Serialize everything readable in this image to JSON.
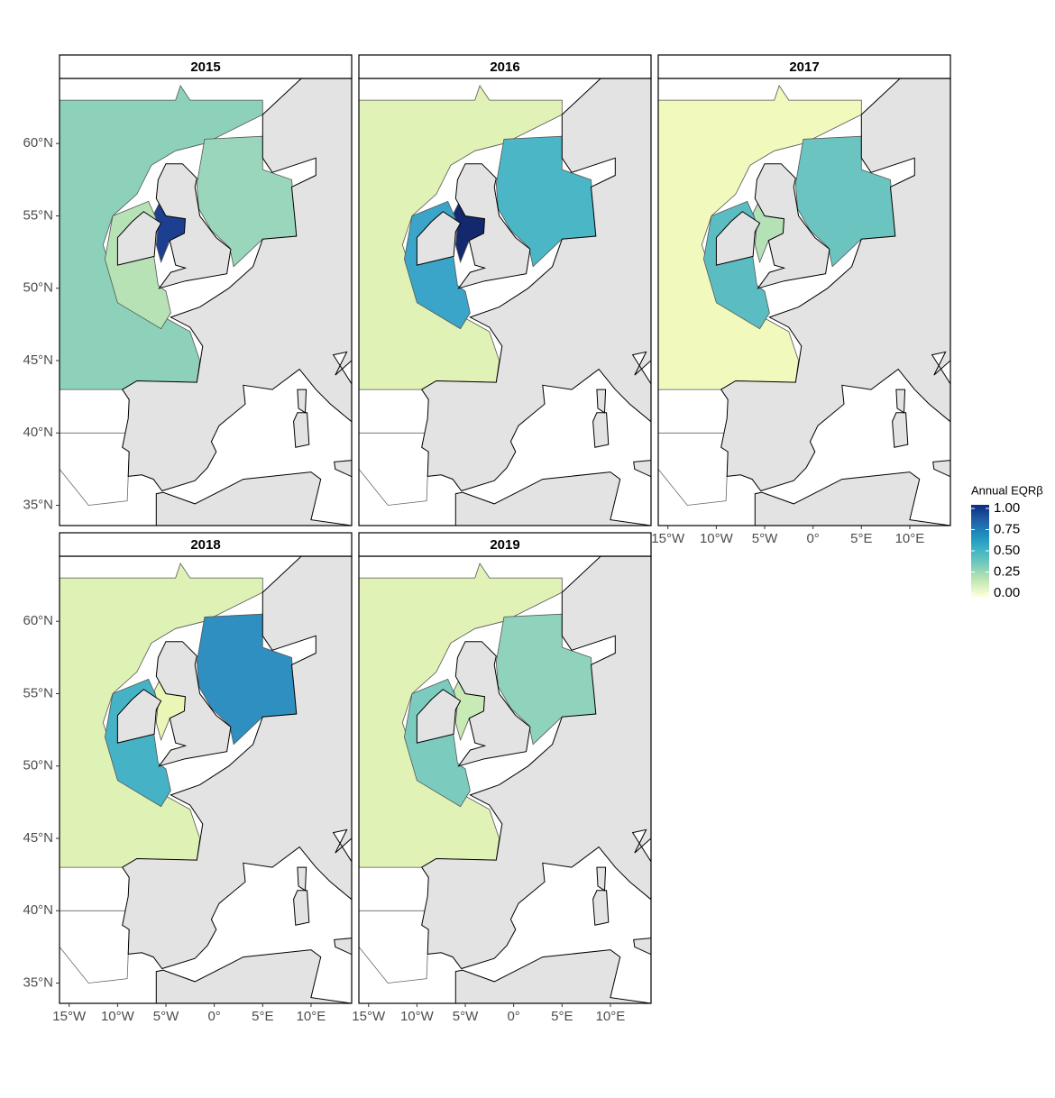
{
  "map": {
    "xlim": [
      -16,
      14.2
    ],
    "ylim": [
      33.6,
      64.5
    ],
    "xticks": [
      {
        "value": -15,
        "label": "15°W"
      },
      {
        "value": -10,
        "label": "10°W"
      },
      {
        "value": -5,
        "label": "5°W"
      },
      {
        "value": 0,
        "label": "0°"
      },
      {
        "value": 5,
        "label": "5°E"
      },
      {
        "value": 10,
        "label": "10°E"
      }
    ],
    "yticks": [
      {
        "value": 35,
        "label": "35°N"
      },
      {
        "value": 40,
        "label": "40°N"
      },
      {
        "value": 45,
        "label": "45°N"
      },
      {
        "value": 50,
        "label": "50°N"
      },
      {
        "value": 55,
        "label": "55°N"
      },
      {
        "value": 60,
        "label": "60°N"
      }
    ],
    "land_color": "#e3e3e3",
    "panels": [
      {
        "title": "2015",
        "colors": {
          "atlantic": "#8dd1bb",
          "north_sea": "#9ad6bc",
          "celtic": "#b6e2b6",
          "irish_sea": "#1d3f8f"
        }
      },
      {
        "title": "2016",
        "colors": {
          "atlantic": "#e1f2b6",
          "north_sea": "#4bb6c5",
          "celtic": "#3aa5c8",
          "irish_sea": "#14286e"
        }
      },
      {
        "title": "2017",
        "colors": {
          "atlantic": "#f1f9bd",
          "north_sea": "#6cc4c0",
          "celtic": "#5bbdc1",
          "irish_sea": "#b5e1b7"
        }
      },
      {
        "title": "2018",
        "colors": {
          "atlantic": "#dff2b5",
          "north_sea": "#2f8fc0",
          "celtic": "#46b2c6",
          "irish_sea": "#e9f6b5"
        }
      },
      {
        "title": "2019",
        "colors": {
          "atlantic": "#e1f2b6",
          "north_sea": "#90d3bc",
          "celtic": "#7bcbbf",
          "irish_sea": "#c8eab5"
        }
      }
    ]
  },
  "legend": {
    "title": "Annual EQRβ",
    "ticks": [
      {
        "value": 0,
        "label": "0.00"
      },
      {
        "value": 0.25,
        "label": "0.25"
      },
      {
        "value": 0.5,
        "label": "0.50"
      },
      {
        "value": 0.75,
        "label": "0.75"
      },
      {
        "value": 1,
        "label": "1.00"
      }
    ],
    "colors": [
      "#ffffd9",
      "#c7e9b4",
      "#7fcdbb",
      "#41b6c4",
      "#1d91c0",
      "#225ea8",
      "#0c2c84"
    ]
  }
}
